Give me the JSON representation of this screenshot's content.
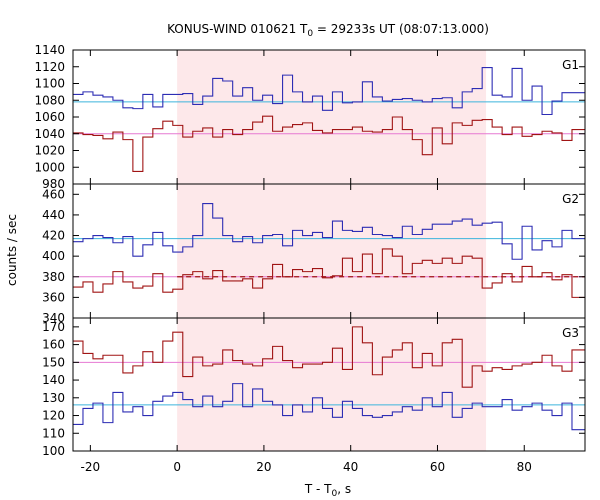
{
  "chart_data": {
    "type": "line",
    "title_main": "KONUS-WIND 010621 T",
    "title_sub": "0",
    "title_rest": " = 29233s UT (08:07:13.000)",
    "xlabel_main": "T - T",
    "xlabel_sub": "0",
    "xlabel_rest": ", s",
    "ylabel": "counts / sec",
    "xlim": [
      -24,
      94
    ],
    "x_ticks": [
      -20,
      0,
      20,
      40,
      60,
      80
    ],
    "highlight_interval": [
      0,
      71.2
    ],
    "colors": {
      "blue_series": "#2d2db4",
      "red_series": "#a01414",
      "blue_background": "#3cb4dc",
      "red_background": "#e678d2",
      "highlight_fill": "#fde8ea"
    },
    "bin_edges": [
      -24,
      -21.7,
      -19.4,
      -17.1,
      -14.8,
      -12.5,
      -10.2,
      -7.9,
      -5.6,
      -3.3,
      -1,
      1.3,
      3.6,
      5.9,
      8.2,
      10.5,
      12.8,
      15.1,
      17.4,
      19.7,
      22,
      24.3,
      26.6,
      28.9,
      31.2,
      33.5,
      35.8,
      38.1,
      40.4,
      42.7,
      45,
      47.3,
      49.6,
      51.9,
      54.2,
      56.5,
      58.8,
      61.1,
      63.4,
      65.7,
      68,
      70.3,
      72.6,
      74.9,
      77.2,
      79.5,
      81.8,
      84.1,
      86.4,
      88.7,
      91,
      94
    ],
    "panels": [
      {
        "label": "G1",
        "ylim": [
          980,
          1140
        ],
        "y_ticks": [
          980,
          1000,
          1020,
          1040,
          1060,
          1080,
          1100,
          1120,
          1140
        ],
        "series": [
          {
            "color_key": "blue_series",
            "values": [
              1087,
              1090,
              1086,
              1084,
              1080,
              1071,
              1070,
              1087,
              1072,
              1087,
              1087,
              1088,
              1075,
              1085,
              1106,
              1103,
              1085,
              1095,
              1080,
              1086,
              1076,
              1110,
              1090,
              1078,
              1085,
              1068,
              1090,
              1077,
              1078,
              1102,
              1084,
              1079,
              1081,
              1082,
              1080,
              1078,
              1082,
              1083,
              1071,
              1090,
              1094,
              1119,
              1086,
              1084,
              1118,
              1080,
              1097,
              1063,
              1079,
              1089,
              1089
            ]
          },
          {
            "color_key": "red_series",
            "values": [
              1041,
              1039,
              1038,
              1034,
              1042,
              1033,
              995,
              1036,
              1046,
              1055,
              1050,
              1036,
              1043,
              1047,
              1036,
              1045,
              1039,
              1045,
              1054,
              1061,
              1043,
              1048,
              1051,
              1053,
              1044,
              1041,
              1045,
              1045,
              1048,
              1043,
              1042,
              1045,
              1060,
              1045,
              1033,
              1015,
              1047,
              1028,
              1053,
              1050,
              1056,
              1057,
              1048,
              1039,
              1048,
              1037,
              1039,
              1043,
              1041,
              1032,
              1045
            ]
          }
        ],
        "background": [
          {
            "color_key": "blue_background",
            "value": 1078
          },
          {
            "color_key": "red_background",
            "value": 1040
          }
        ]
      },
      {
        "label": "G2",
        "ylim": [
          340,
          470
        ],
        "y_ticks": [
          340,
          360,
          380,
          400,
          420,
          440,
          460
        ],
        "series": [
          {
            "color_key": "blue_series",
            "values": [
              414,
              417,
              420,
              418,
              413,
              419,
              400,
              411,
              423,
              410,
              404,
              409,
              420,
              451,
              437,
              420,
              414,
              419,
              413,
              420,
              421,
              410,
              425,
              420,
              423,
              418,
              434,
              425,
              424,
              428,
              421,
              420,
              418,
              429,
              421,
              426,
              431,
              431,
              434,
              436,
              430,
              432,
              433,
              412,
              397,
              429,
              406,
              415,
              409,
              425,
              417
            ]
          },
          {
            "color_key": "red_series",
            "values": [
              370,
              375,
              365,
              373,
              385,
              375,
              369,
              371,
              383,
              365,
              368,
              382,
              385,
              378,
              386,
              376,
              376,
              378,
              369,
              378,
              392,
              380,
              387,
              385,
              388,
              379,
              381,
              398,
              385,
              402,
              383,
              407,
              400,
              383,
              393,
              396,
              393,
              398,
              393,
              400,
              398,
              369,
              374,
              383,
              375,
              390,
              380,
              384,
              377,
              382,
              360
            ]
          }
        ],
        "background": [
          {
            "color_key": "blue_background",
            "value": 417
          },
          {
            "color_key": "red_background",
            "value": 380
          }
        ],
        "dashed_segment": {
          "color_key": "red_series",
          "x": [
            0,
            94
          ],
          "value": 380
        }
      },
      {
        "label": "G3",
        "ylim": [
          100,
          175
        ],
        "y_ticks": [
          100,
          110,
          120,
          130,
          140,
          150,
          160,
          170
        ],
        "series": [
          {
            "color_key": "blue_series",
            "values": [
              115,
              124,
              127,
              116,
              133,
              122,
              125,
              120,
              128,
              131,
              133,
              129,
              125,
              131,
              125,
              128,
              138,
              125,
              135,
              128,
              126,
              120,
              126,
              122,
              130,
              124,
              119,
              128,
              124,
              120,
              119,
              120,
              122,
              125,
              123,
              130,
              125,
              133,
              119,
              124,
              127,
              125,
              125,
              129,
              123,
              125,
              127,
              123,
              120,
              127,
              112
            ]
          },
          {
            "color_key": "red_series",
            "values": [
              162,
              155,
              152,
              154,
              154,
              144,
              148,
              156,
              150,
              162,
              167,
              142,
              153,
              148,
              149,
              157,
              151,
              149,
              148,
              152,
              159,
              151,
              147,
              149,
              149,
              150,
              158,
              146,
              170,
              161,
              143,
              153,
              157,
              161,
              147,
              155,
              148,
              161,
              163,
              136,
              148,
              145,
              147,
              146,
              148,
              149,
              150,
              154,
              148,
              145,
              157
            ]
          }
        ],
        "background": [
          {
            "color_key": "blue_background",
            "value": 126
          },
          {
            "color_key": "red_background",
            "value": 150
          }
        ]
      }
    ]
  }
}
